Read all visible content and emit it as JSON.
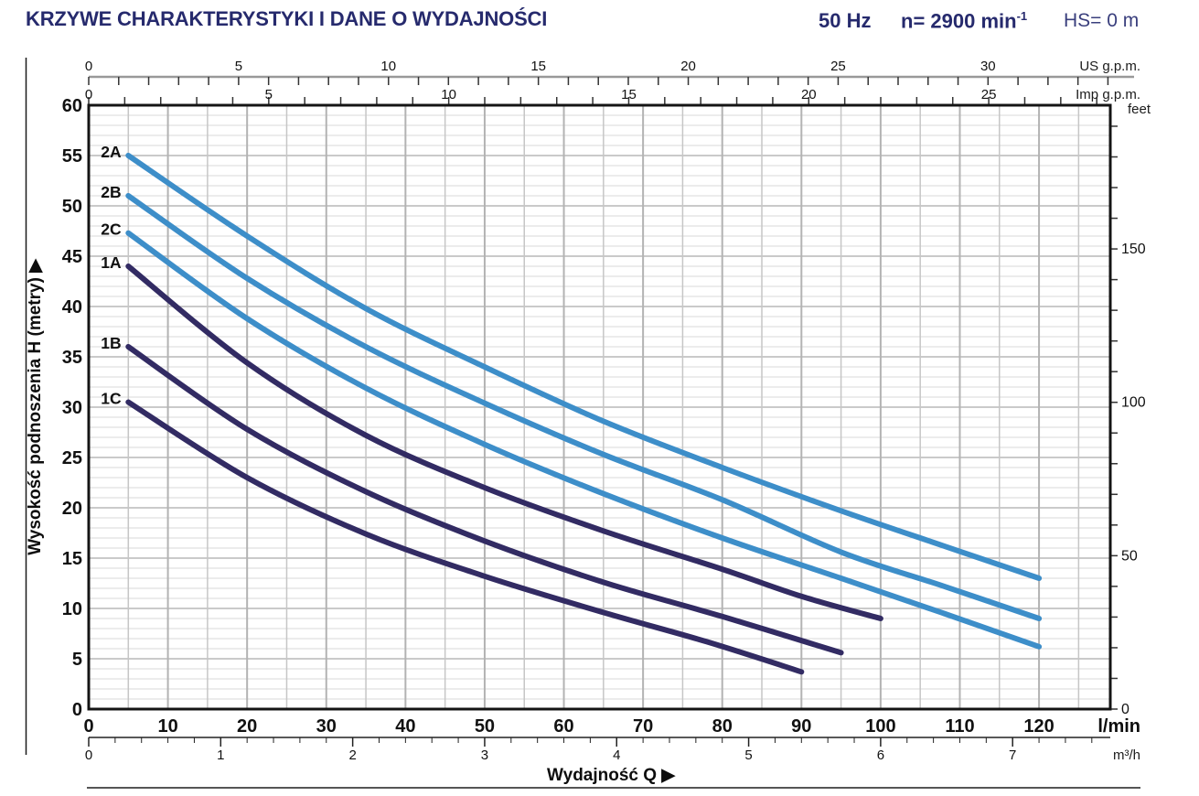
{
  "header": {
    "title": "KRZYWE CHARAKTERYSTYKI I DANE O WYDAJNOŚCI",
    "frequency": "50 Hz",
    "speed": "n= 2900 min",
    "speed_exponent": "-1",
    "suction_head": "HS= 0 m"
  },
  "colors": {
    "title_navy": "#262a6d",
    "curve_light_blue": "#3d8ec9",
    "curve_dark_navy": "#322b63",
    "grid_minor": "#d9d9d9",
    "grid_major": "#b9b9b9",
    "frame": "#141414"
  },
  "chart_data": {
    "type": "line",
    "title": "KRZYWE CHARAKTERYSTYKI I DANE O WYDAJNOŚCI",
    "xlabel": "Wydajność Q  ▶",
    "ylabel": "Wysokość podnoszenia  H  (metry)  ▶",
    "x_unit_primary": "l/min",
    "x_unit_secondary": "m³/h",
    "x_unit_us": "US g.p.m.",
    "x_unit_imp": "Imp g.p.m.",
    "y_unit_right": "feet",
    "xlim_lmin": [
      0,
      129
    ],
    "ylim_m": [
      0,
      60
    ],
    "x_ticks_lmin": [
      0,
      10,
      20,
      30,
      40,
      50,
      60,
      70,
      80,
      90,
      100,
      110,
      120
    ],
    "x_ticks_m3h": [
      0,
      1,
      2,
      3,
      4,
      5,
      6,
      7
    ],
    "x_ticks_usgpm": [
      0,
      5,
      10,
      15,
      20,
      25,
      30
    ],
    "x_ticks_impgpm": [
      0,
      5,
      10,
      15,
      20,
      25
    ],
    "y_ticks_m": [
      0,
      5,
      10,
      15,
      20,
      25,
      30,
      35,
      40,
      45,
      50,
      55,
      60
    ],
    "y_ticks_feet": [
      0,
      50,
      100,
      150
    ],
    "grid": {
      "x_minor_step_lmin": 5,
      "y_minor_step_m": 1
    },
    "axis_config": {
      "us_minor_step": 1,
      "us_max": 34,
      "imp_minor_step": 1,
      "imp_max": 28,
      "m3h_minor_step": 0.2,
      "m3h_max": 7.6,
      "feet_minor_step": 10,
      "feet_max": 190
    },
    "series": [
      {
        "name": "2A",
        "color": "#3d8ec9",
        "points": [
          [
            5,
            55
          ],
          [
            20,
            47
          ],
          [
            35,
            39.8
          ],
          [
            50,
            34
          ],
          [
            65,
            28.6
          ],
          [
            80,
            24
          ],
          [
            95,
            19.7
          ],
          [
            108,
            16.2
          ],
          [
            120,
            13
          ]
        ]
      },
      {
        "name": "2B",
        "color": "#3d8ec9",
        "points": [
          [
            5,
            51
          ],
          [
            20,
            42.8
          ],
          [
            35,
            36
          ],
          [
            50,
            30.4
          ],
          [
            65,
            25.3
          ],
          [
            80,
            20.8
          ],
          [
            95,
            15.6
          ],
          [
            108,
            12.2
          ],
          [
            120,
            9
          ]
        ]
      },
      {
        "name": "2C",
        "color": "#3d8ec9",
        "points": [
          [
            5,
            47.3
          ],
          [
            20,
            38.8
          ],
          [
            35,
            31.9
          ],
          [
            50,
            26.3
          ],
          [
            65,
            21.4
          ],
          [
            80,
            17
          ],
          [
            95,
            13
          ],
          [
            108,
            9.5
          ],
          [
            120,
            6.2
          ]
        ]
      },
      {
        "name": "1A",
        "color": "#322b63",
        "points": [
          [
            5,
            44
          ],
          [
            20,
            34.4
          ],
          [
            35,
            27.2
          ],
          [
            50,
            22
          ],
          [
            65,
            17.7
          ],
          [
            80,
            13.9
          ],
          [
            90,
            11.2
          ],
          [
            100,
            9
          ]
        ]
      },
      {
        "name": "1B",
        "color": "#322b63",
        "points": [
          [
            5,
            36
          ],
          [
            20,
            27.8
          ],
          [
            35,
            21.6
          ],
          [
            50,
            16.7
          ],
          [
            65,
            12.6
          ],
          [
            80,
            9.2
          ],
          [
            95,
            5.6
          ]
        ]
      },
      {
        "name": "1C",
        "color": "#322b63",
        "points": [
          [
            5,
            30.5
          ],
          [
            20,
            23
          ],
          [
            35,
            17.4
          ],
          [
            50,
            13.2
          ],
          [
            65,
            9.6
          ],
          [
            78,
            6.7
          ],
          [
            90,
            3.7
          ]
        ]
      }
    ]
  }
}
